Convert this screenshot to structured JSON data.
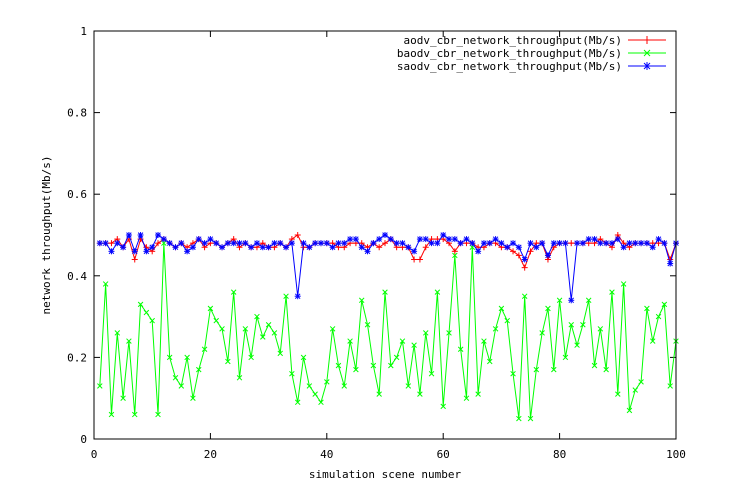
{
  "chart_data": {
    "type": "line",
    "title": "",
    "xlabel": "simulation scene number",
    "ylabel": "network throughput(Mb/s)",
    "xlim": [
      0,
      100
    ],
    "ylim": [
      0,
      1
    ],
    "x_ticks": [
      "0",
      "20",
      "40",
      "60",
      "80",
      "100"
    ],
    "y_ticks": [
      "0",
      "0.2",
      "0.4",
      "0.6",
      "0.8",
      "1"
    ],
    "x": [
      1,
      2,
      3,
      4,
      5,
      6,
      7,
      8,
      9,
      10,
      11,
      12,
      13,
      14,
      15,
      16,
      17,
      18,
      19,
      20,
      21,
      22,
      23,
      24,
      25,
      26,
      27,
      28,
      29,
      30,
      31,
      32,
      33,
      34,
      35,
      36,
      37,
      38,
      39,
      40,
      41,
      42,
      43,
      44,
      45,
      46,
      47,
      48,
      49,
      50,
      51,
      52,
      53,
      54,
      55,
      56,
      57,
      58,
      59,
      60,
      61,
      62,
      63,
      64,
      65,
      66,
      67,
      68,
      69,
      70,
      71,
      72,
      73,
      74,
      75,
      76,
      77,
      78,
      79,
      80,
      81,
      82,
      83,
      84,
      85,
      86,
      87,
      88,
      89,
      90,
      91,
      92,
      93,
      94,
      95,
      96,
      97,
      98,
      99,
      100
    ],
    "series": [
      {
        "name": "aodv_cbr_network_throughput(Mb/s)",
        "color": "#ff0000",
        "marker": "plus",
        "values": [
          0.48,
          0.48,
          0.48,
          0.49,
          0.47,
          0.49,
          0.44,
          0.49,
          0.47,
          0.46,
          0.48,
          0.49,
          0.48,
          0.47,
          0.48,
          0.47,
          0.48,
          0.49,
          0.47,
          0.48,
          0.48,
          0.47,
          0.48,
          0.49,
          0.47,
          0.48,
          0.47,
          0.47,
          0.48,
          0.47,
          0.47,
          0.48,
          0.47,
          0.49,
          0.5,
          0.47,
          0.47,
          0.48,
          0.48,
          0.48,
          0.48,
          0.47,
          0.47,
          0.48,
          0.48,
          0.48,
          0.47,
          0.48,
          0.47,
          0.48,
          0.49,
          0.47,
          0.47,
          0.47,
          0.44,
          0.44,
          0.47,
          0.49,
          0.49,
          0.49,
          0.48,
          0.46,
          0.48,
          0.48,
          0.48,
          0.47,
          0.47,
          0.48,
          0.48,
          0.47,
          0.47,
          0.46,
          0.45,
          0.42,
          0.46,
          0.48,
          0.48,
          0.44,
          0.47,
          0.48,
          0.48,
          0.48,
          0.48,
          0.48,
          0.48,
          0.48,
          0.49,
          0.48,
          0.47,
          0.5,
          0.48,
          0.47,
          0.48,
          0.48,
          0.48,
          0.48,
          0.48,
          0.48,
          0.44,
          0.48
        ]
      },
      {
        "name": "baodv_cbr_network_throughput(Mb/s)",
        "color": "#00ff00",
        "marker": "cross",
        "values": [
          0.13,
          0.38,
          0.06,
          0.26,
          0.1,
          0.24,
          0.06,
          0.33,
          0.31,
          0.29,
          0.06,
          0.48,
          0.2,
          0.15,
          0.13,
          0.2,
          0.1,
          0.17,
          0.22,
          0.32,
          0.29,
          0.27,
          0.19,
          0.36,
          0.15,
          0.27,
          0.2,
          0.3,
          0.25,
          0.28,
          0.26,
          0.21,
          0.35,
          0.16,
          0.09,
          0.2,
          0.13,
          0.11,
          0.09,
          0.14,
          0.27,
          0.18,
          0.13,
          0.24,
          0.17,
          0.34,
          0.28,
          0.18,
          0.11,
          0.36,
          0.18,
          0.2,
          0.24,
          0.13,
          0.23,
          0.11,
          0.26,
          0.16,
          0.36,
          0.08,
          0.26,
          0.45,
          0.22,
          0.1,
          0.47,
          0.11,
          0.24,
          0.19,
          0.27,
          0.32,
          0.29,
          0.16,
          0.05,
          0.35,
          0.05,
          0.17,
          0.26,
          0.32,
          0.17,
          0.34,
          0.2,
          0.28,
          0.23,
          0.28,
          0.34,
          0.18,
          0.27,
          0.17,
          0.36,
          0.11,
          0.38,
          0.07,
          0.12,
          0.14,
          0.32,
          0.24,
          0.3,
          0.33,
          0.13,
          0.24
        ]
      },
      {
        "name": "saodv_cbr_network_throughput(Mb/s)",
        "color": "#0000ff",
        "marker": "star",
        "values": [
          0.48,
          0.48,
          0.46,
          0.48,
          0.47,
          0.5,
          0.46,
          0.5,
          0.46,
          0.47,
          0.5,
          0.49,
          0.48,
          0.47,
          0.48,
          0.46,
          0.47,
          0.49,
          0.48,
          0.49,
          0.48,
          0.47,
          0.48,
          0.48,
          0.48,
          0.48,
          0.47,
          0.48,
          0.47,
          0.47,
          0.48,
          0.48,
          0.47,
          0.48,
          0.35,
          0.48,
          0.47,
          0.48,
          0.48,
          0.48,
          0.47,
          0.48,
          0.48,
          0.49,
          0.49,
          0.47,
          0.46,
          0.48,
          0.49,
          0.5,
          0.49,
          0.48,
          0.48,
          0.47,
          0.46,
          0.49,
          0.49,
          0.48,
          0.48,
          0.5,
          0.49,
          0.49,
          0.48,
          0.49,
          0.48,
          0.46,
          0.48,
          0.48,
          0.49,
          0.48,
          0.47,
          0.48,
          0.47,
          0.44,
          0.48,
          0.47,
          0.48,
          0.45,
          0.48,
          0.48,
          0.48,
          0.34,
          0.48,
          0.48,
          0.49,
          0.49,
          0.48,
          0.48,
          0.48,
          0.49,
          0.47,
          0.48,
          0.48,
          0.48,
          0.48,
          0.47,
          0.49,
          0.48,
          0.43,
          0.48
        ]
      }
    ]
  }
}
